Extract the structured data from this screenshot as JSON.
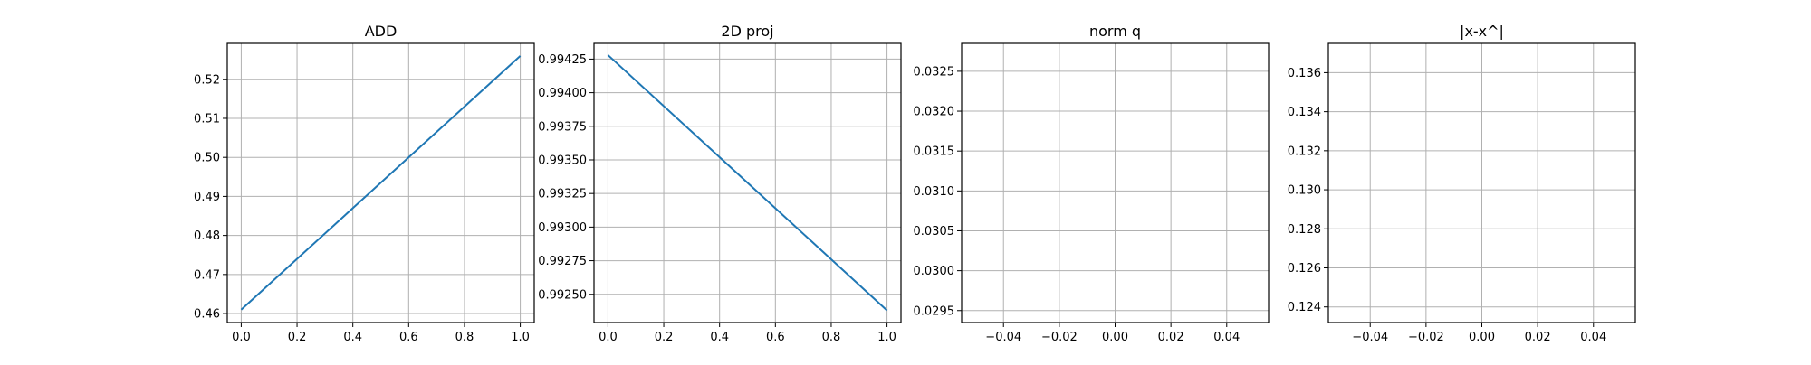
{
  "chart_data": [
    {
      "type": "line",
      "title": "ADD",
      "xlabel": "",
      "ylabel": "",
      "xlim": [
        -0.05,
        1.05
      ],
      "ylim": [
        0.4577,
        0.5292
      ],
      "grid": true,
      "xticks": [
        0.0,
        0.2,
        0.4,
        0.6,
        0.8,
        1.0
      ],
      "xtick_labels": [
        "0.0",
        "0.2",
        "0.4",
        "0.6",
        "0.8",
        "1.0"
      ],
      "yticks": [
        0.46,
        0.47,
        0.48,
        0.49,
        0.5,
        0.51,
        0.52
      ],
      "ytick_labels": [
        "0.46",
        "0.47",
        "0.48",
        "0.49",
        "0.50",
        "0.51",
        "0.52"
      ],
      "series": [
        {
          "x": [
            0.0,
            1.0
          ],
          "y": [
            0.461,
            0.526
          ]
        }
      ]
    },
    {
      "type": "line",
      "title": "2D proj",
      "xlabel": "",
      "ylabel": "",
      "xlim": [
        -0.05,
        1.05
      ],
      "ylim": [
        0.99229,
        0.994367
      ],
      "grid": true,
      "xticks": [
        0.0,
        0.2,
        0.4,
        0.6,
        0.8,
        1.0
      ],
      "xtick_labels": [
        "0.0",
        "0.2",
        "0.4",
        "0.6",
        "0.8",
        "1.0"
      ],
      "yticks": [
        0.9925,
        0.99275,
        0.993,
        0.99325,
        0.9935,
        0.99375,
        0.994,
        0.99425
      ],
      "ytick_labels": [
        "0.99250",
        "0.99275",
        "0.99300",
        "0.99325",
        "0.99350",
        "0.99375",
        "0.99400",
        "0.99425"
      ],
      "series": [
        {
          "x": [
            0.0,
            1.0
          ],
          "y": [
            0.99428,
            0.99238
          ]
        }
      ]
    },
    {
      "type": "line",
      "title": "norm q",
      "xlabel": "",
      "ylabel": "",
      "xlim": [
        -0.055,
        0.055
      ],
      "ylim": [
        0.02935,
        0.03285
      ],
      "grid": true,
      "xticks": [
        -0.04,
        -0.02,
        0.0,
        0.02,
        0.04
      ],
      "xtick_labels": [
        "−0.04",
        "−0.02",
        "0.00",
        "0.02",
        "0.04"
      ],
      "yticks": [
        0.0295,
        0.03,
        0.0305,
        0.031,
        0.0315,
        0.032,
        0.0325
      ],
      "ytick_labels": [
        "0.0295",
        "0.0300",
        "0.0305",
        "0.0310",
        "0.0315",
        "0.0320",
        "0.0325"
      ],
      "series": []
    },
    {
      "type": "line",
      "title": "|x-x^|",
      "xlabel": "",
      "ylabel": "",
      "xlim": [
        -0.055,
        0.055
      ],
      "ylim": [
        0.1232,
        0.1375
      ],
      "grid": true,
      "xticks": [
        -0.04,
        -0.02,
        0.0,
        0.02,
        0.04
      ],
      "xtick_labels": [
        "−0.04",
        "−0.02",
        "0.00",
        "0.02",
        "0.04"
      ],
      "yticks": [
        0.124,
        0.126,
        0.128,
        0.13,
        0.132,
        0.134,
        0.136
      ],
      "ytick_labels": [
        "0.124",
        "0.126",
        "0.128",
        "0.130",
        "0.132",
        "0.134",
        "0.136"
      ],
      "series": []
    }
  ]
}
